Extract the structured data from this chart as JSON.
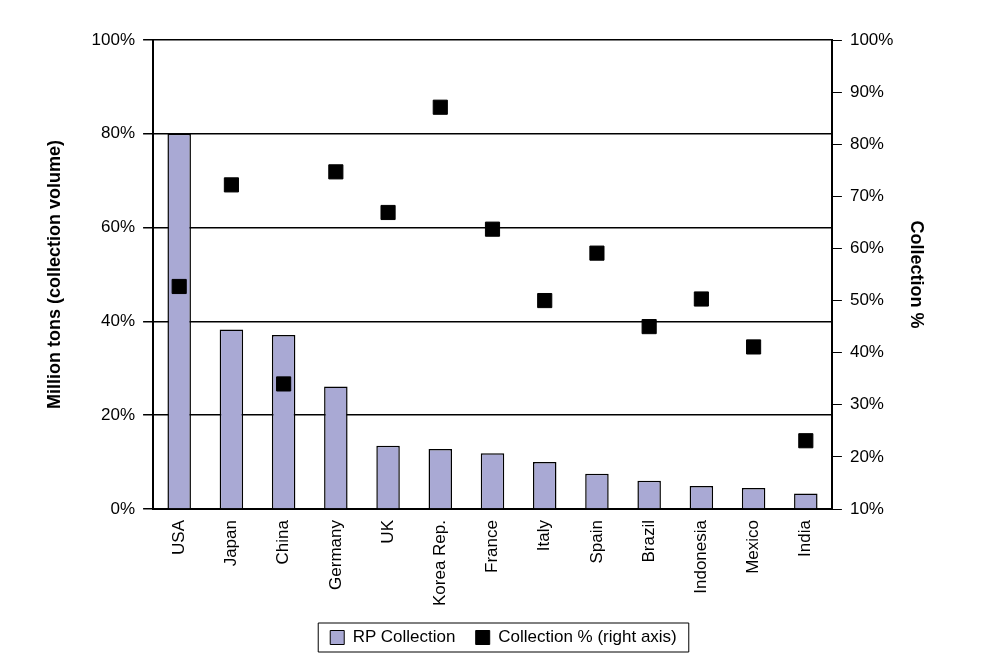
{
  "chart_data": {
    "type": "bar",
    "ylabel": "Million tons (collection volume)",
    "y2label": "Collection %",
    "categories": [
      "USA",
      "Japan",
      "China",
      "Germany",
      "UK",
      "Korea Rep.",
      "France",
      "Italy",
      "Spain",
      "Brazil",
      "Indonesia",
      "Mexico",
      "India"
    ],
    "series": [
      {
        "name": "RP Collection",
        "color": "#a9a9d4",
        "values": [
          80,
          38.3,
          37.1,
          26.1,
          13.5,
          12.8,
          11.9,
          10,
          7.5,
          6,
          4.9,
          4.5,
          3.3
        ]
      },
      {
        "name": "Collection % (right axis)",
        "type": "scatter",
        "axis": "y2",
        "color": "#000000",
        "x": [
          "USA",
          "Japan",
          "China",
          "Germany",
          "UK",
          "Korea Rep.",
          "France",
          "Italy",
          "Spain",
          "Brazil",
          "Indonesia",
          "Mexico",
          "India"
        ],
        "values": [
          52.7,
          72.2,
          34,
          74.7,
          66.9,
          87.1,
          63.7,
          50,
          59.1,
          45,
          50.3,
          41.1,
          23.1
        ]
      }
    ],
    "ylim": [
      0,
      100
    ],
    "yticks": [
      {
        "value": 0,
        "label": "0%"
      },
      {
        "value": 20,
        "label": "20%"
      },
      {
        "value": 40,
        "label": "40%"
      },
      {
        "value": 60,
        "label": "60%"
      },
      {
        "value": 80,
        "label": "80%"
      },
      {
        "value": 100,
        "label": "100%"
      }
    ],
    "y2lim": [
      10,
      100
    ],
    "y2ticks": [
      {
        "value": 10,
        "label": "10%"
      },
      {
        "value": 20,
        "label": "20%"
      },
      {
        "value": 30,
        "label": "30%"
      },
      {
        "value": 40,
        "label": "40%"
      },
      {
        "value": 50,
        "label": "50%"
      },
      {
        "value": 60,
        "label": "60%"
      },
      {
        "value": 70,
        "label": "70%"
      },
      {
        "value": 80,
        "label": "80%"
      },
      {
        "value": 90,
        "label": "90%"
      },
      {
        "value": 100,
        "label": "100%"
      }
    ],
    "grid": "y",
    "legend": "bottom",
    "marker": "square"
  }
}
